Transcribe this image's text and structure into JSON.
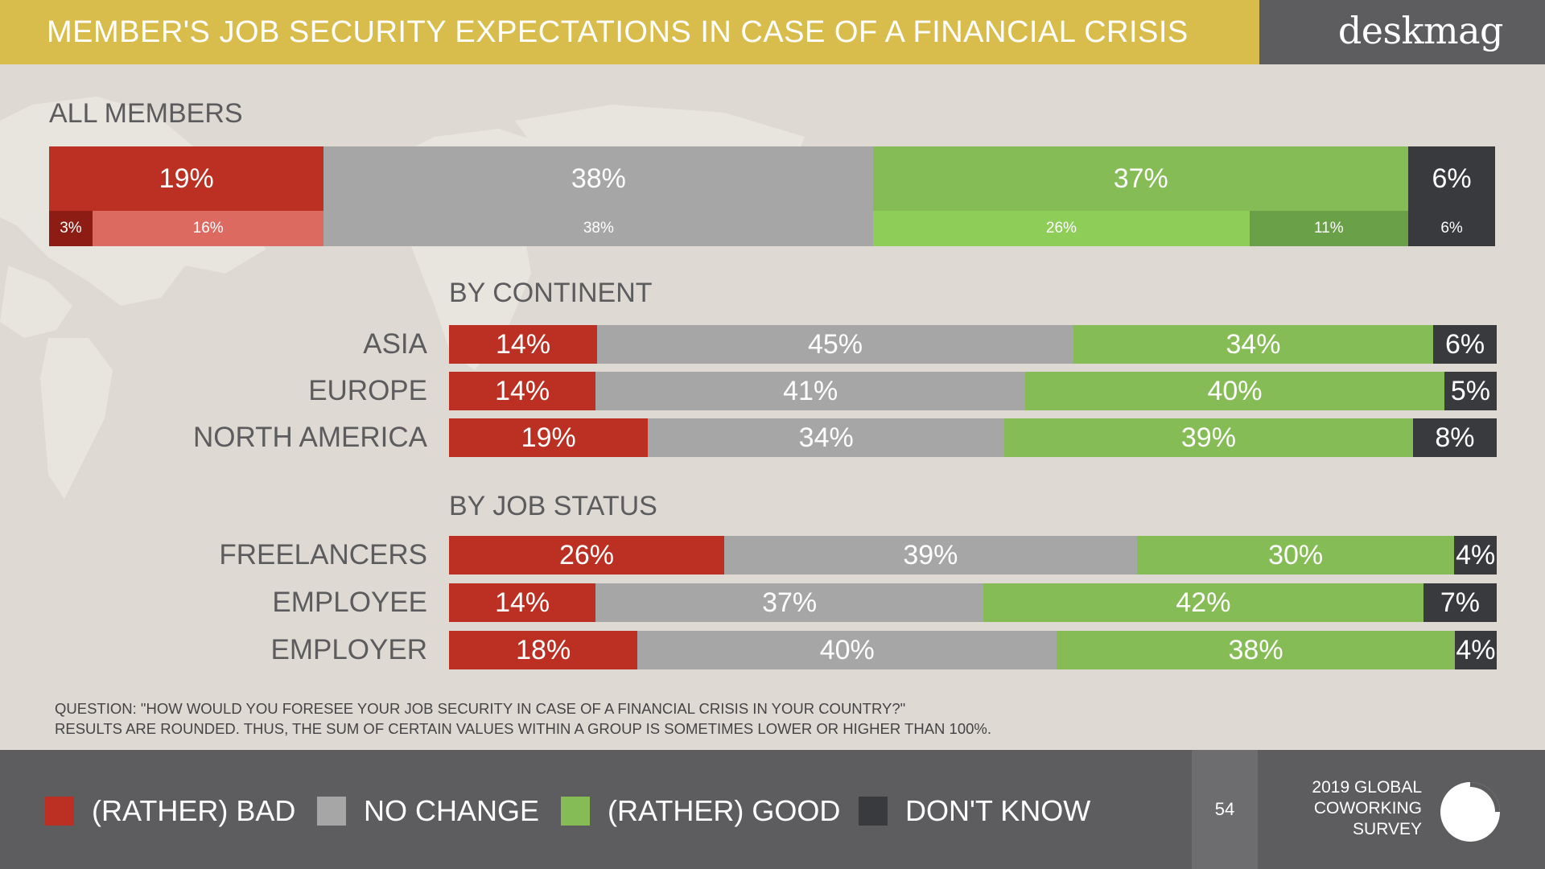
{
  "header": {
    "title": "MEMBER'S JOB SECURITY EXPECTATIONS IN CASE OF A FINANCIAL CRISIS",
    "brand": "deskmag"
  },
  "colors": {
    "bad": "#bb3022",
    "bad_light": "#dc6a60",
    "bad_dark": "#8c1c14",
    "no_change": "#a6a6a7",
    "good": "#86bc56",
    "good_light": "#8ece58",
    "good_dark": "#6aa048",
    "dont_know": "#393a3e"
  },
  "sections": {
    "all_members": "ALL MEMBERS",
    "by_continent": "BY CONTINENT",
    "by_job_status": "BY JOB STATUS"
  },
  "chart_data": [
    {
      "type": "bar",
      "orientation": "horizontal",
      "stacked": true,
      "normalized_100": true,
      "title": "ALL MEMBERS",
      "categories": [
        "ALL MEMBERS"
      ],
      "series": [
        {
          "name": "(RATHER) BAD",
          "values": [
            19
          ]
        },
        {
          "name": "NO CHANGE",
          "values": [
            38
          ]
        },
        {
          "name": "(RATHER) GOOD",
          "values": [
            37
          ]
        },
        {
          "name": "DON'T KNOW",
          "values": [
            6
          ]
        }
      ],
      "sub_breakdown": [
        {
          "values": [
            3,
            16
          ],
          "labels": [
            "3%",
            "16%"
          ]
        },
        {
          "values": [
            38
          ],
          "labels": [
            "38%"
          ]
        },
        {
          "values": [
            26,
            11
          ],
          "labels": [
            "26%",
            "11%"
          ]
        },
        {
          "values": [
            6
          ],
          "labels": [
            "6%"
          ]
        }
      ]
    },
    {
      "type": "bar",
      "orientation": "horizontal",
      "stacked": true,
      "normalized_100": true,
      "title": "BY CONTINENT",
      "categories": [
        "ASIA",
        "EUROPE",
        "NORTH AMERICA"
      ],
      "series": [
        {
          "name": "(RATHER) BAD",
          "values": [
            14,
            14,
            19
          ]
        },
        {
          "name": "NO CHANGE",
          "values": [
            45,
            41,
            34
          ]
        },
        {
          "name": "(RATHER) GOOD",
          "values": [
            34,
            40,
            39
          ]
        },
        {
          "name": "DON'T KNOW",
          "values": [
            6,
            5,
            8
          ]
        }
      ]
    },
    {
      "type": "bar",
      "orientation": "horizontal",
      "stacked": true,
      "normalized_100": true,
      "title": "BY JOB STATUS",
      "categories": [
        "FREELANCERS",
        "EMPLOYEE",
        "EMPLOYER"
      ],
      "series": [
        {
          "name": "(RATHER) BAD",
          "values": [
            26,
            14,
            18
          ]
        },
        {
          "name": "NO CHANGE",
          "values": [
            39,
            37,
            40
          ]
        },
        {
          "name": "(RATHER) GOOD",
          "values": [
            30,
            42,
            38
          ]
        },
        {
          "name": "DON'T KNOW",
          "values": [
            4,
            7,
            4
          ]
        }
      ]
    }
  ],
  "notes": {
    "question": "QUESTION: \"HOW WOULD YOU FORESEE YOUR JOB SECURITY IN CASE OF A FINANCIAL CRISIS IN YOUR COUNTRY?\"",
    "rounding": "RESULTS ARE ROUNDED. THUS, THE SUM OF CERTAIN VALUES WITHIN A GROUP IS SOMETIMES LOWER OR HIGHER THAN 100%."
  },
  "legend": [
    {
      "label": "(RATHER) BAD",
      "color": "#bb3022"
    },
    {
      "label": "NO CHANGE",
      "color": "#a6a6a7"
    },
    {
      "label": "(RATHER) GOOD",
      "color": "#86bc56"
    },
    {
      "label": "DON'T KNOW",
      "color": "#393a3e"
    }
  ],
  "footer": {
    "page_number": "54",
    "survey_lines": [
      "2019 GLOBAL",
      "COWORKING",
      "SURVEY"
    ]
  }
}
